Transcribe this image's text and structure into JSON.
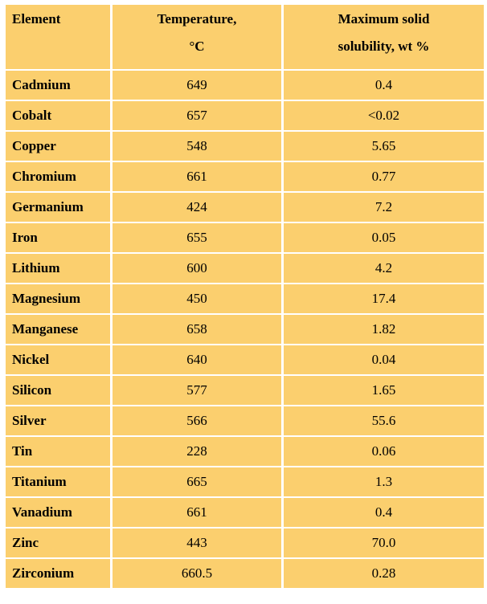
{
  "table": {
    "headers": {
      "element": "Element",
      "temperature_line1": "Temperature,",
      "temperature_line2": "°C",
      "solubility_line1": "Maximum solid",
      "solubility_line2": "solubility, wt %"
    },
    "rows": [
      {
        "element": "Cadmium",
        "temperature": "649",
        "solubility": "0.4"
      },
      {
        "element": "Cobalt",
        "temperature": "657",
        "solubility": "<0.02"
      },
      {
        "element": "Copper",
        "temperature": "548",
        "solubility": "5.65"
      },
      {
        "element": "Chromium",
        "temperature": "661",
        "solubility": "0.77"
      },
      {
        "element": "Germanium",
        "temperature": "424",
        "solubility": "7.2"
      },
      {
        "element": "Iron",
        "temperature": "655",
        "solubility": "0.05"
      },
      {
        "element": "Lithium",
        "temperature": "600",
        "solubility": "4.2"
      },
      {
        "element": "Magnesium",
        "temperature": "450",
        "solubility": "17.4"
      },
      {
        "element": "Manganese",
        "temperature": "658",
        "solubility": "1.82"
      },
      {
        "element": "Nickel",
        "temperature": "640",
        "solubility": "0.04"
      },
      {
        "element": "Silicon",
        "temperature": "577",
        "solubility": "1.65"
      },
      {
        "element": "Silver",
        "temperature": "566",
        "solubility": "55.6"
      },
      {
        "element": "Tin",
        "temperature": "228",
        "solubility": "0.06"
      },
      {
        "element": "Titanium",
        "temperature": "665",
        "solubility": "1.3"
      },
      {
        "element": "Vanadium",
        "temperature": "661",
        "solubility": "0.4"
      },
      {
        "element": "Zinc",
        "temperature": "443",
        "solubility": "70.0"
      },
      {
        "element": "Zirconium",
        "temperature": "660.5",
        "solubility": "0.28"
      }
    ]
  },
  "colors": {
    "cell_background": "#fbcf6e",
    "page_background": "#ffffff"
  }
}
